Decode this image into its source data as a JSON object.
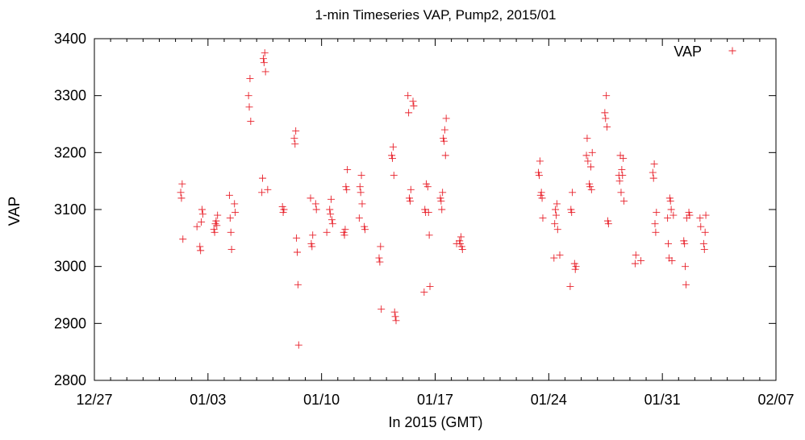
{
  "chart_data": {
    "type": "scatter",
    "title": "1-min Timeseries VAP, Pump2, 2015/01",
    "xlabel": "In 2015 (GMT)",
    "ylabel": "VAP",
    "ylim": [
      2800,
      3400
    ],
    "xlim": [
      "2014-12-27",
      "2015-02-07"
    ],
    "x_ticks": [
      "12/27",
      "01/03",
      "01/10",
      "01/17",
      "01/24",
      "01/31",
      "02/07"
    ],
    "y_ticks": [
      "2800",
      "2900",
      "3000",
      "3100",
      "3200",
      "3300",
      "3400"
    ],
    "grid": false,
    "legend": "top-right",
    "marker": "+",
    "series": [
      {
        "name": "VAP",
        "color": "#e8202a",
        "points": [
          [
            "2015-01-01",
            3130
          ],
          [
            "2015-01-01",
            3120
          ],
          [
            "2015-01-01",
            3145
          ],
          [
            "2015-01-01",
            3048
          ],
          [
            "2015-01-02",
            3035
          ],
          [
            "2015-01-02",
            3028
          ],
          [
            "2015-01-02",
            3078
          ],
          [
            "2015-01-02",
            3100
          ],
          [
            "2015-01-02",
            3092
          ],
          [
            "2015-01-02",
            3070
          ],
          [
            "2015-01-03",
            3065
          ],
          [
            "2015-01-03",
            3060
          ],
          [
            "2015-01-03",
            3075
          ],
          [
            "2015-01-03",
            3080
          ],
          [
            "2015-01-03",
            3072
          ],
          [
            "2015-01-03",
            3090
          ],
          [
            "2015-01-04",
            3110
          ],
          [
            "2015-01-04",
            3095
          ],
          [
            "2015-01-04",
            3125
          ],
          [
            "2015-01-04",
            3085
          ],
          [
            "2015-01-04",
            3060
          ],
          [
            "2015-01-04",
            3030
          ],
          [
            "2015-01-05",
            3300
          ],
          [
            "2015-01-05",
            3280
          ],
          [
            "2015-01-05",
            3330
          ],
          [
            "2015-01-05",
            3255
          ],
          [
            "2015-01-06",
            3135
          ],
          [
            "2015-01-06",
            3130
          ],
          [
            "2015-01-06",
            3155
          ],
          [
            "2015-01-06",
            3365
          ],
          [
            "2015-01-06",
            3358
          ],
          [
            "2015-01-06",
            3375
          ],
          [
            "2015-01-06",
            3342
          ],
          [
            "2015-01-07",
            3105
          ],
          [
            "2015-01-07",
            3095
          ],
          [
            "2015-01-07",
            3100
          ],
          [
            "2015-01-08",
            3225
          ],
          [
            "2015-01-08",
            3215
          ],
          [
            "2015-01-08",
            3238
          ],
          [
            "2015-01-08",
            3050
          ],
          [
            "2015-01-08",
            3025
          ],
          [
            "2015-01-08",
            2968
          ],
          [
            "2015-01-08",
            2862
          ],
          [
            "2015-01-09",
            3110
          ],
          [
            "2015-01-09",
            3100
          ],
          [
            "2015-01-09",
            3120
          ],
          [
            "2015-01-09",
            3040
          ],
          [
            "2015-01-09",
            3035
          ],
          [
            "2015-01-09",
            3055
          ],
          [
            "2015-01-10",
            3100
          ],
          [
            "2015-01-10",
            3092
          ],
          [
            "2015-01-10",
            3118
          ],
          [
            "2015-01-10",
            3082
          ],
          [
            "2015-01-10",
            3075
          ],
          [
            "2015-01-10",
            3060
          ],
          [
            "2015-01-11",
            3060
          ],
          [
            "2015-01-11",
            3055
          ],
          [
            "2015-01-11",
            3065
          ],
          [
            "2015-01-11",
            3140
          ],
          [
            "2015-01-11",
            3135
          ],
          [
            "2015-01-11",
            3170
          ],
          [
            "2015-01-12",
            3070
          ],
          [
            "2015-01-12",
            3065
          ],
          [
            "2015-01-12",
            3085
          ],
          [
            "2015-01-12",
            3140
          ],
          [
            "2015-01-12",
            3130
          ],
          [
            "2015-01-12",
            3160
          ],
          [
            "2015-01-12",
            3110
          ],
          [
            "2015-01-13",
            3015
          ],
          [
            "2015-01-13",
            3008
          ],
          [
            "2015-01-13",
            3035
          ],
          [
            "2015-01-13",
            2925
          ],
          [
            "2015-01-14",
            3195
          ],
          [
            "2015-01-14",
            3190
          ],
          [
            "2015-01-14",
            3210
          ],
          [
            "2015-01-14",
            3160
          ],
          [
            "2015-01-14",
            2920
          ],
          [
            "2015-01-14",
            2912
          ],
          [
            "2015-01-14",
            2905
          ],
          [
            "2015-01-15",
            3290
          ],
          [
            "2015-01-15",
            3282
          ],
          [
            "2015-01-15",
            3300
          ],
          [
            "2015-01-15",
            3270
          ],
          [
            "2015-01-15",
            3120
          ],
          [
            "2015-01-15",
            3115
          ],
          [
            "2015-01-15",
            3135
          ],
          [
            "2015-01-16",
            3140
          ],
          [
            "2015-01-16",
            3095
          ],
          [
            "2015-01-16",
            3055
          ],
          [
            "2015-01-16",
            2965
          ],
          [
            "2015-01-16",
            2955
          ],
          [
            "2015-01-16",
            3100
          ],
          [
            "2015-01-16",
            3095
          ],
          [
            "2015-01-16",
            3145
          ],
          [
            "2015-01-17",
            3225
          ],
          [
            "2015-01-17",
            3220
          ],
          [
            "2015-01-17",
            3240
          ],
          [
            "2015-01-17",
            3195
          ],
          [
            "2015-01-17",
            3260
          ],
          [
            "2015-01-17",
            3120
          ],
          [
            "2015-01-17",
            3115
          ],
          [
            "2015-01-17",
            3100
          ],
          [
            "2015-01-17",
            3130
          ],
          [
            "2015-01-18",
            3045
          ],
          [
            "2015-01-18",
            3040
          ],
          [
            "2015-01-18",
            3052
          ],
          [
            "2015-01-18",
            3035
          ],
          [
            "2015-01-18",
            3030
          ],
          [
            "2015-01-18",
            3040
          ],
          [
            "2015-01-23",
            3165
          ],
          [
            "2015-01-23",
            3160
          ],
          [
            "2015-01-23",
            3185
          ],
          [
            "2015-01-23",
            3125
          ],
          [
            "2015-01-23",
            3130
          ],
          [
            "2015-01-23",
            3120
          ],
          [
            "2015-01-23",
            3085
          ],
          [
            "2015-01-24",
            3020
          ],
          [
            "2015-01-24",
            3015
          ],
          [
            "2015-01-24",
            3075
          ],
          [
            "2015-01-24",
            3100
          ],
          [
            "2015-01-24",
            3090
          ],
          [
            "2015-01-24",
            3110
          ],
          [
            "2015-01-24",
            3065
          ],
          [
            "2015-01-25",
            3005
          ],
          [
            "2015-01-25",
            2995
          ],
          [
            "2015-01-25",
            3000
          ],
          [
            "2015-01-25",
            2965
          ],
          [
            "2015-01-25",
            3100
          ],
          [
            "2015-01-25",
            3095
          ],
          [
            "2015-01-25",
            3130
          ],
          [
            "2015-01-26",
            3145
          ],
          [
            "2015-01-26",
            3140
          ],
          [
            "2015-01-26",
            3175
          ],
          [
            "2015-01-26",
            3135
          ],
          [
            "2015-01-26",
            3200
          ],
          [
            "2015-01-26",
            3195
          ],
          [
            "2015-01-26",
            3225
          ],
          [
            "2015-01-26",
            3185
          ],
          [
            "2015-01-27",
            3270
          ],
          [
            "2015-01-27",
            3260
          ],
          [
            "2015-01-27",
            3300
          ],
          [
            "2015-01-27",
            3245
          ],
          [
            "2015-01-27",
            3080
          ],
          [
            "2015-01-27",
            3075
          ],
          [
            "2015-01-28",
            3160
          ],
          [
            "2015-01-28",
            3150
          ],
          [
            "2015-01-28",
            3195
          ],
          [
            "2015-01-28",
            3130
          ],
          [
            "2015-01-28",
            3170
          ],
          [
            "2015-01-28",
            3160
          ],
          [
            "2015-01-28",
            3190
          ],
          [
            "2015-01-28",
            3115
          ],
          [
            "2015-01-29",
            3010
          ],
          [
            "2015-01-29",
            3005
          ],
          [
            "2015-01-29",
            3020
          ],
          [
            "2015-01-30",
            3165
          ],
          [
            "2015-01-30",
            3155
          ],
          [
            "2015-01-30",
            3180
          ],
          [
            "2015-01-30",
            3075
          ],
          [
            "2015-01-30",
            3060
          ],
          [
            "2015-01-30",
            3095
          ],
          [
            "2015-01-31",
            3090
          ],
          [
            "2015-01-31",
            3085
          ],
          [
            "2015-01-31",
            3040
          ],
          [
            "2015-01-31",
            3015
          ],
          [
            "2015-01-31",
            3120
          ],
          [
            "2015-01-31",
            3115
          ],
          [
            "2015-01-31",
            3100
          ],
          [
            "2015-01-31",
            3010
          ],
          [
            "2015-02-01",
            3095
          ],
          [
            "2015-02-01",
            3090
          ],
          [
            "2015-02-01",
            3045
          ],
          [
            "2015-02-01",
            3040
          ],
          [
            "2015-02-01",
            3000
          ],
          [
            "2015-02-01",
            2968
          ],
          [
            "2015-02-01",
            3085
          ],
          [
            "2015-02-02",
            3040
          ],
          [
            "2015-02-02",
            3030
          ],
          [
            "2015-02-02",
            3060
          ],
          [
            "2015-02-02",
            3090
          ],
          [
            "2015-02-02",
            3085
          ],
          [
            "2015-02-02",
            3070
          ]
        ]
      }
    ]
  }
}
